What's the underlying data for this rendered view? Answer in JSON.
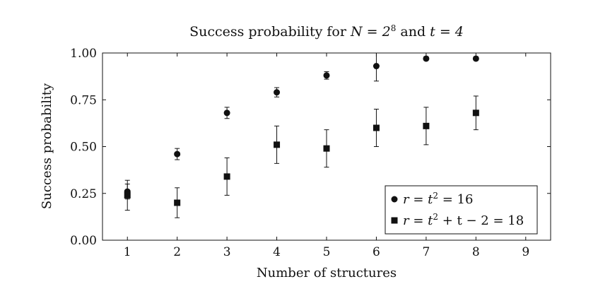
{
  "chart_data": {
    "type": "scatter",
    "title": {
      "prefix": "Success probability for",
      "expr1": "N = 2",
      "expr1_sup": "8",
      "joiner": "and",
      "expr2": "t = 4"
    },
    "xlabel": "Number of structures",
    "ylabel": "Success probability",
    "xlim": [
      0.5,
      9.5
    ],
    "ylim": [
      0.0,
      1.0
    ],
    "xticks": [
      1,
      2,
      3,
      4,
      5,
      6,
      7,
      8,
      9
    ],
    "yticks": [
      "0.00",
      "0.25",
      "0.50",
      "0.75",
      "1.00"
    ],
    "grid": false,
    "legend_position": "bottom-right",
    "series": [
      {
        "name": "r = t² = 16",
        "legend_parts": [
          "r = t",
          "2",
          " = 16"
        ],
        "marker": "circle",
        "x": [
          1,
          2,
          3,
          4,
          5,
          6,
          7,
          8
        ],
        "y": [
          0.26,
          0.46,
          0.68,
          0.79,
          0.88,
          0.93,
          0.97,
          0.97
        ],
        "err": [
          0.04,
          0.03,
          0.03,
          0.025,
          0.02,
          0.08,
          0.01,
          0.01
        ]
      },
      {
        "name": "r = t² + t − 2 = 18",
        "legend_parts": [
          "r = t",
          "2",
          " + t − 2 = 18"
        ],
        "marker": "square",
        "x": [
          1,
          2,
          3,
          4,
          5,
          6,
          7,
          8
        ],
        "y": [
          0.24,
          0.2,
          0.34,
          0.51,
          0.49,
          0.6,
          0.61,
          0.68
        ],
        "err": [
          0.08,
          0.08,
          0.1,
          0.1,
          0.1,
          0.1,
          0.1,
          0.09
        ]
      }
    ],
    "colors": {
      "marker": "#111111",
      "axis": "#111111"
    }
  }
}
